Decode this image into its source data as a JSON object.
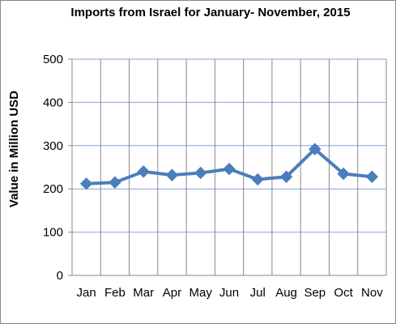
{
  "chart_data": {
    "type": "line",
    "title": "Imports from Israel for January- November, 2015",
    "xlabel": "",
    "ylabel": "Value in Million USD",
    "categories": [
      "Jan",
      "Feb",
      "Mar",
      "Apr",
      "May",
      "Jun",
      "Jul",
      "Aug",
      "Sep",
      "Oct",
      "Nov"
    ],
    "series": [
      {
        "values": [
          212,
          215,
          240,
          232,
          237,
          246,
          222,
          228,
          292,
          235,
          228
        ]
      }
    ],
    "ylim": [
      0,
      500
    ],
    "yticks": [
      "0",
      "100",
      "200",
      "300",
      "400",
      "500"
    ],
    "grid": true,
    "legend": "none",
    "colors": {
      "line": "#4A7EBB",
      "grid": "#86A4D6",
      "axis": "#888888"
    }
  }
}
